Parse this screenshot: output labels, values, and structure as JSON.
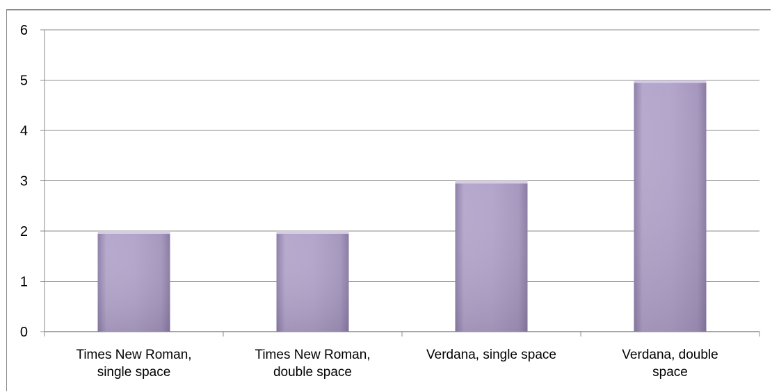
{
  "chart_data": {
    "type": "bar",
    "categories": [
      "Times New Roman, single space",
      "Times New Roman, double space",
      "Verdana, single space",
      "Verdana, double space"
    ],
    "category_label_lines": [
      [
        "Times New Roman,",
        "single space"
      ],
      [
        "Times New Roman,",
        "double space"
      ],
      [
        "Verdana, single space"
      ],
      [
        "Verdana, double",
        "space"
      ]
    ],
    "values": [
      2,
      2,
      3,
      5
    ],
    "ylim": [
      0,
      6
    ],
    "yticks": [
      "0",
      "1",
      "2",
      "3",
      "4",
      "5",
      "6"
    ],
    "grid": true,
    "title": "",
    "xlabel": "",
    "ylabel": "",
    "bar_color": "#b1a3c9",
    "bar_color_dark": "#8f7fa9"
  }
}
